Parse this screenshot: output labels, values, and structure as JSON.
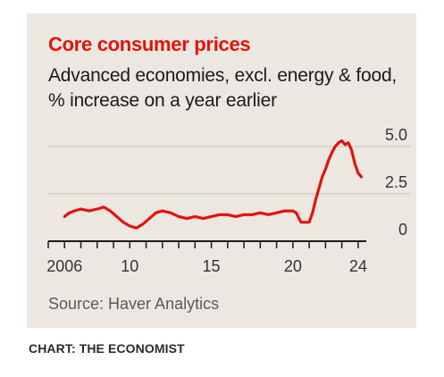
{
  "credit": "CHART: THE ECONOMIST",
  "colors": {
    "line": "#e3120b",
    "title": "#e3120b",
    "panel": "#ece8e1",
    "grid": "#c8c4bc",
    "axis": "#1a1a1a"
  },
  "chart_data": {
    "type": "line",
    "title": "Core consumer prices",
    "subtitle": "Advanced economies, excl. energy & food, % increase on a year earlier",
    "source": "Source: Haver Analytics",
    "xlabel": "",
    "ylabel": "",
    "xlim": [
      2005.0,
      2024.5
    ],
    "ylim": [
      0,
      5.0
    ],
    "x_ticks": [
      {
        "value": 2006,
        "label": "2006"
      },
      {
        "value": 2010,
        "label": "10"
      },
      {
        "value": 2015,
        "label": "15"
      },
      {
        "value": 2020,
        "label": "20"
      },
      {
        "value": 2024,
        "label": "24"
      }
    ],
    "y_ticks": [
      {
        "value": 0,
        "label": "0"
      },
      {
        "value": 2.5,
        "label": "2.5"
      },
      {
        "value": 5.0,
        "label": "5.0"
      }
    ],
    "grid": true,
    "legend": "none",
    "series": [
      {
        "x": [
          2006.0,
          2006.3,
          2006.6,
          2007.0,
          2007.5,
          2008.0,
          2008.4,
          2008.8,
          2009.2,
          2009.6,
          2010.0,
          2010.4,
          2010.8,
          2011.2,
          2011.6,
          2012.0,
          2012.5,
          2013.0,
          2013.5,
          2014.0,
          2014.5,
          2015.0,
          2015.5,
          2016.0,
          2016.5,
          2017.0,
          2017.5,
          2018.0,
          2018.5,
          2019.0,
          2019.5,
          2020.0,
          2020.2,
          2020.5,
          2020.8,
          2021.0,
          2021.2,
          2021.4,
          2021.6,
          2021.8,
          2022.0,
          2022.2,
          2022.4,
          2022.6,
          2022.8,
          2023.0,
          2023.2,
          2023.4,
          2023.6,
          2023.8,
          2024.0,
          2024.2
        ],
        "y": [
          1.3,
          1.5,
          1.6,
          1.7,
          1.6,
          1.7,
          1.8,
          1.6,
          1.3,
          1.0,
          0.8,
          0.7,
          0.9,
          1.2,
          1.5,
          1.6,
          1.5,
          1.3,
          1.2,
          1.3,
          1.2,
          1.3,
          1.4,
          1.4,
          1.3,
          1.4,
          1.4,
          1.5,
          1.4,
          1.5,
          1.6,
          1.6,
          1.5,
          1.0,
          1.0,
          1.0,
          1.5,
          2.2,
          2.8,
          3.4,
          3.8,
          4.3,
          4.7,
          5.0,
          5.2,
          5.3,
          5.1,
          5.2,
          4.8,
          4.1,
          3.6,
          3.4
        ]
      }
    ]
  }
}
